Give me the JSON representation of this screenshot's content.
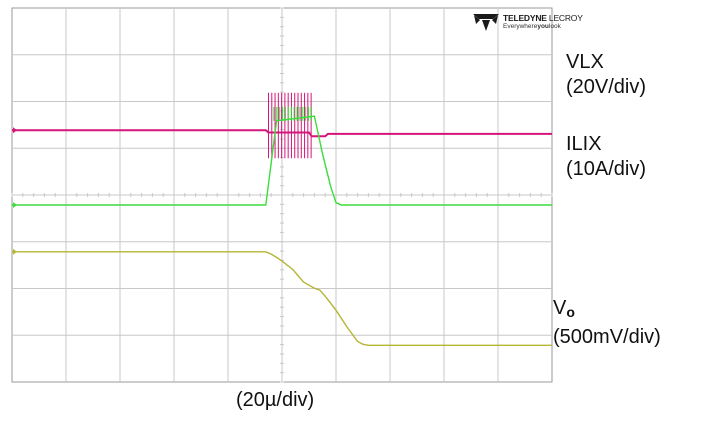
{
  "chart_data": {
    "type": "line",
    "title": "",
    "xlabel": "(20µ/div)",
    "ylabel": "",
    "grid": true,
    "divisions": {
      "x": 10,
      "y": 8
    },
    "xlim": [
      -100,
      100
    ],
    "x_unit": "µs",
    "series": [
      {
        "name": "VLX",
        "scale": "(20V/div)",
        "color": "#d4157a",
        "baseline_div": 1.6,
        "ripple_div": 0.02,
        "points": [
          [
            -100,
            1.6
          ],
          [
            -6,
            1.6
          ],
          [
            -5,
            1.55
          ],
          [
            10,
            1.55
          ],
          [
            11,
            1.47
          ],
          [
            16,
            1.47
          ],
          [
            17,
            1.52
          ],
          [
            100,
            1.52
          ]
        ],
        "switching": {
          "x_start": -5,
          "x_end": 12,
          "pulses": 14,
          "top_div": 2.4,
          "bottom_div": 1.0
        }
      },
      {
        "name": "ILIX",
        "scale": "(10A/div)",
        "color": "#3ddc3d",
        "baseline_div": 0.0,
        "points": [
          [
            -100,
            0
          ],
          [
            -6,
            0
          ],
          [
            -2,
            1.8
          ],
          [
            12,
            1.9
          ],
          [
            15,
            1.1
          ],
          [
            18,
            0.4
          ],
          [
            20,
            0.05
          ],
          [
            22,
            0
          ],
          [
            100,
            0
          ]
        ],
        "switching": {
          "x_start": -3,
          "x_end": 12,
          "pulses": 14,
          "top_div": 2.1,
          "bottom_div": 1.8
        }
      },
      {
        "name": "Vo",
        "scale": "(500mV/div)",
        "color": "#b5b536",
        "baseline_div": -1.0,
        "points": [
          [
            -100,
            -1.0
          ],
          [
            -6,
            -1.0
          ],
          [
            -4,
            -1.05
          ],
          [
            -2,
            -1.12
          ],
          [
            0,
            -1.2
          ],
          [
            4,
            -1.38
          ],
          [
            8,
            -1.65
          ],
          [
            12,
            -1.78
          ],
          [
            14,
            -1.82
          ],
          [
            16,
            -1.95
          ],
          [
            20,
            -2.25
          ],
          [
            24,
            -2.6
          ],
          [
            28,
            -2.92
          ],
          [
            30,
            -2.98
          ],
          [
            32,
            -3.0
          ],
          [
            100,
            -3.0
          ]
        ]
      }
    ]
  },
  "labels": {
    "vlx_name": "VLX",
    "vlx_scale": "(20V/div)",
    "ilix_name": "ILIX",
    "ilix_scale": "(10A/div)",
    "vo_name": "V",
    "vo_sub": "o",
    "vo_scale": "(500mV/div)",
    "time_scale": "(20µ/div)"
  },
  "logo": {
    "brand_bold": "TELEDYNE",
    "brand_light": "LECROY",
    "tagline_pre": "Everywhere",
    "tagline_bold": "you",
    "tagline_post": "look"
  },
  "colors": {
    "grid": "#c8c8c8",
    "border": "#9a9a9a",
    "vlx": "#d4157a",
    "ilix": "#3ddc3d",
    "vo": "#b5b536"
  }
}
